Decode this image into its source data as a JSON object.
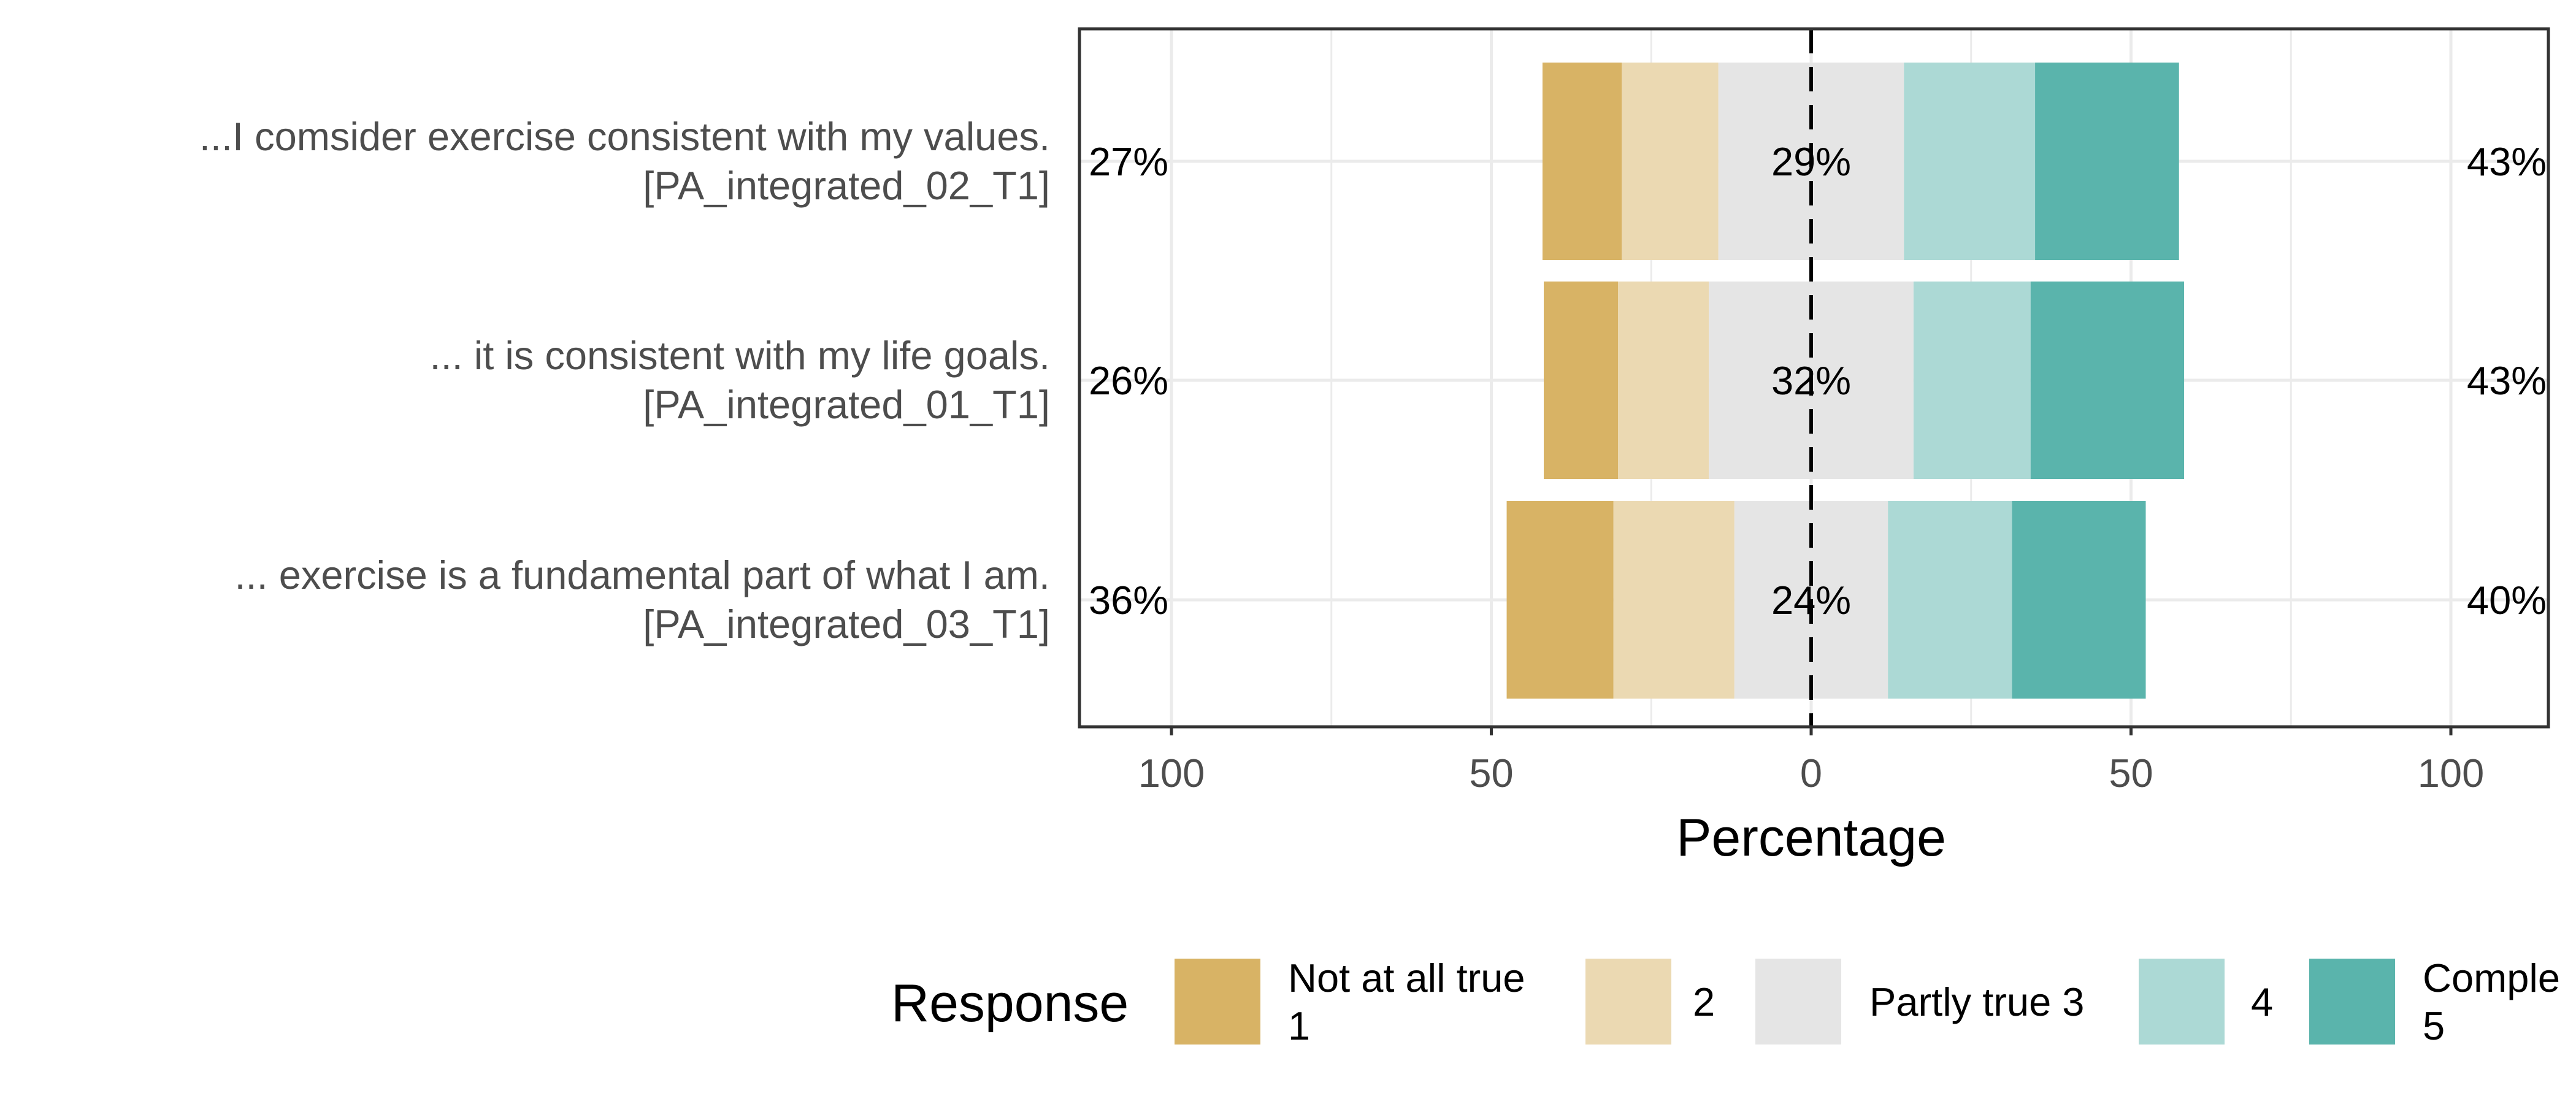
{
  "chart_data": {
    "type": "bar",
    "subtype": "diverging-stacked-likert",
    "title": "",
    "xlabel": "Percentage",
    "ylabel": "",
    "xlim": [
      -100,
      100
    ],
    "x_ticks": [
      -100,
      -50,
      0,
      50,
      100
    ],
    "x_tick_labels": [
      "100",
      "50",
      "0",
      "50",
      "100"
    ],
    "grid": true,
    "legend_position": "bottom",
    "legend_title": "Response",
    "responses": [
      {
        "line1": "Not at all true",
        "line2": "1",
        "color": "#D8B365"
      },
      {
        "line1": "2",
        "line2": "",
        "color": "#EBD9B2"
      },
      {
        "line1": "Partly true 3",
        "line2": "",
        "color": "#E5E5E5"
      },
      {
        "line1": "4",
        "line2": "",
        "color": "#ACD9D5"
      },
      {
        "line1": "Comple",
        "line2": "5",
        "color": "#5AB4AC"
      }
    ],
    "items": [
      {
        "line1": "...I comsider exercise consistent with my values.",
        "line2": "[PA_integrated_02_T1]",
        "values": [
          12.4,
          15.1,
          29,
          20.5,
          22.5
        ],
        "low_label": "27%",
        "neutral_label": "29%",
        "high_label": "43%"
      },
      {
        "line1": "... it is consistent with my life goals.",
        "line2": "[PA_integrated_01_T1]",
        "values": [
          11.6,
          14.2,
          32,
          18.3,
          24.0
        ],
        "low_label": "26%",
        "neutral_label": "32%",
        "high_label": "43%"
      },
      {
        "line1": "... exercise is a fundamental part of what I am.",
        "line2": "[PA_integrated_03_T1]",
        "values": [
          16.7,
          18.9,
          24,
          19.4,
          20.9
        ],
        "low_label": "36%",
        "neutral_label": "24%",
        "high_label": "40%"
      }
    ]
  }
}
